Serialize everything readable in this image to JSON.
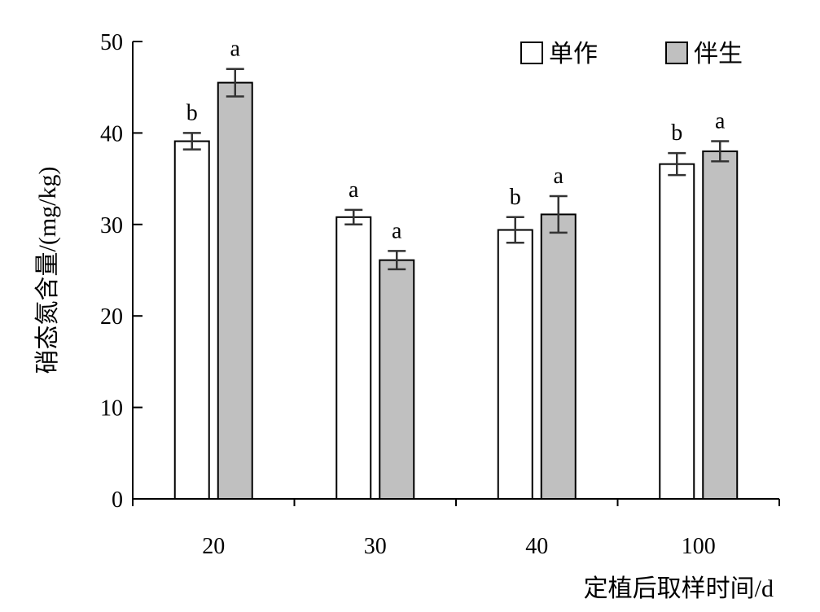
{
  "chart_data": {
    "type": "bar",
    "title": "",
    "xlabel": "定植后取样时间/d",
    "ylabel": "硝态氮含量/(mg/kg)",
    "ylim": [
      0,
      50
    ],
    "yticks": [
      0,
      10,
      20,
      30,
      40,
      50
    ],
    "categories": [
      "20",
      "30",
      "40",
      "100"
    ],
    "legend_position": "top-right",
    "grid": false,
    "series": [
      {
        "name": "单作",
        "color": "#ffffff",
        "values": [
          39.1,
          30.8,
          29.4,
          36.6
        ],
        "errors": [
          0.9,
          0.8,
          1.4,
          1.2
        ],
        "significance": [
          "b",
          "a",
          "b",
          "b"
        ]
      },
      {
        "name": "伴生",
        "color": "#c0c0c0",
        "values": [
          45.5,
          26.1,
          31.1,
          38.0
        ],
        "errors": [
          1.5,
          1.0,
          2.0,
          1.1
        ],
        "significance": [
          "a",
          "a",
          "a",
          "a"
        ]
      }
    ]
  }
}
